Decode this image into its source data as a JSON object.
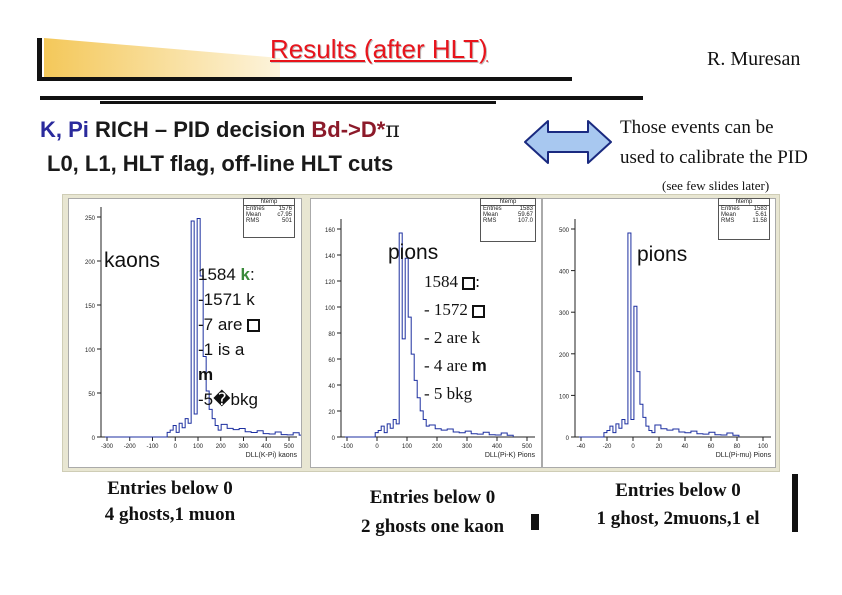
{
  "slide": {
    "title": "Results (after HLT)",
    "author": "R. Muresan",
    "subtitle_line1": {
      "part1": "K, Pi",
      "part2": " RICH  – PID decision ",
      "part3": "Bd->D*",
      "part4": "π"
    },
    "subtitle_line2": "L0, L1, HLT flag, off-line HLT cuts",
    "note_line1": "Those events can be",
    "note_line2": "used to calibrate the PID",
    "note_line3": "(see few slides later)"
  },
  "panels": [
    {
      "label": "kaons",
      "stats": {
        "name": "htemp",
        "entries_label": "Entries",
        "entries": "1576",
        "mean_label": "Mean",
        "mean": "c7.95",
        "rms_label": "RMS",
        "rms": "501"
      },
      "yticks": [
        "250",
        "200",
        "150",
        "100",
        "50",
        "0"
      ],
      "xticks": [
        "-300",
        "-200",
        "-100",
        "0",
        "100",
        "200",
        "300",
        "400",
        "500"
      ],
      "xtitle": "DLL(K-Pi) kaons",
      "annotation": {
        "line1_pre": "1584 ",
        "line1_k": "k",
        "line1_post": ":",
        "line2": "-1571 k",
        "line3": "-7 are ",
        "line3_sym": "p",
        "line4": "-1 is a",
        "line5_sym": "m",
        "line6": "-5�bkg"
      },
      "caption_line1": "Entries below 0",
      "caption_line2": "4 ghosts,1 muon"
    },
    {
      "label": "pions",
      "stats": {
        "name": "htemp",
        "entries_label": "Entries",
        "entries": "1583",
        "mean_label": "Mean",
        "mean": "59.67",
        "rms_label": "RMS",
        "rms": "107.0"
      },
      "yticks": [
        "160",
        "140",
        "120",
        "100",
        "80",
        "60",
        "40",
        "20",
        "0"
      ],
      "xticks": [
        "-100",
        "0",
        "100",
        "200",
        "300",
        "400",
        "500"
      ],
      "xtitle": "DLL(Pi-K) Pions",
      "annotation": {
        "line1_pre": "1584 ",
        "line1_sym": "p",
        "line1_post": ":",
        "line2": "- 1572 ",
        "line2_sym": "p",
        "line3": "- 2 are k",
        "line4": "- 4 are ",
        "line4_sym": "m",
        "line5": "- 5 bkg"
      },
      "caption_line1": "Entries below 0",
      "caption_line2": "2 ghosts one kaon"
    },
    {
      "label": "pions",
      "stats": {
        "name": "htemp",
        "entries_label": "Entries",
        "entries": "1583",
        "mean_label": "Mean",
        "mean": "5.61",
        "rms_label": "RMS",
        "rms": "11.58"
      },
      "yticks": [
        "500",
        "400",
        "300",
        "200",
        "100",
        "0"
      ],
      "xticks": [
        "-40",
        "-20",
        "0",
        "20",
        "40",
        "60",
        "80",
        "100"
      ],
      "xtitle": "DLL(Pi-mu) Pions",
      "caption_line1": "Entries below 0",
      "caption_line2": "1 ghost, 2muons,1 el"
    }
  ],
  "colors": {
    "title": "#e8141c",
    "subtitle_blue": "#2a2a9c",
    "subtitle_maroon": "#8c1a2a",
    "histogram": "#1c2fa0",
    "arrow_fill": "#a8c8f0",
    "arrow_stroke": "#1a2a80",
    "panel_bg": "#e8e6d2"
  }
}
